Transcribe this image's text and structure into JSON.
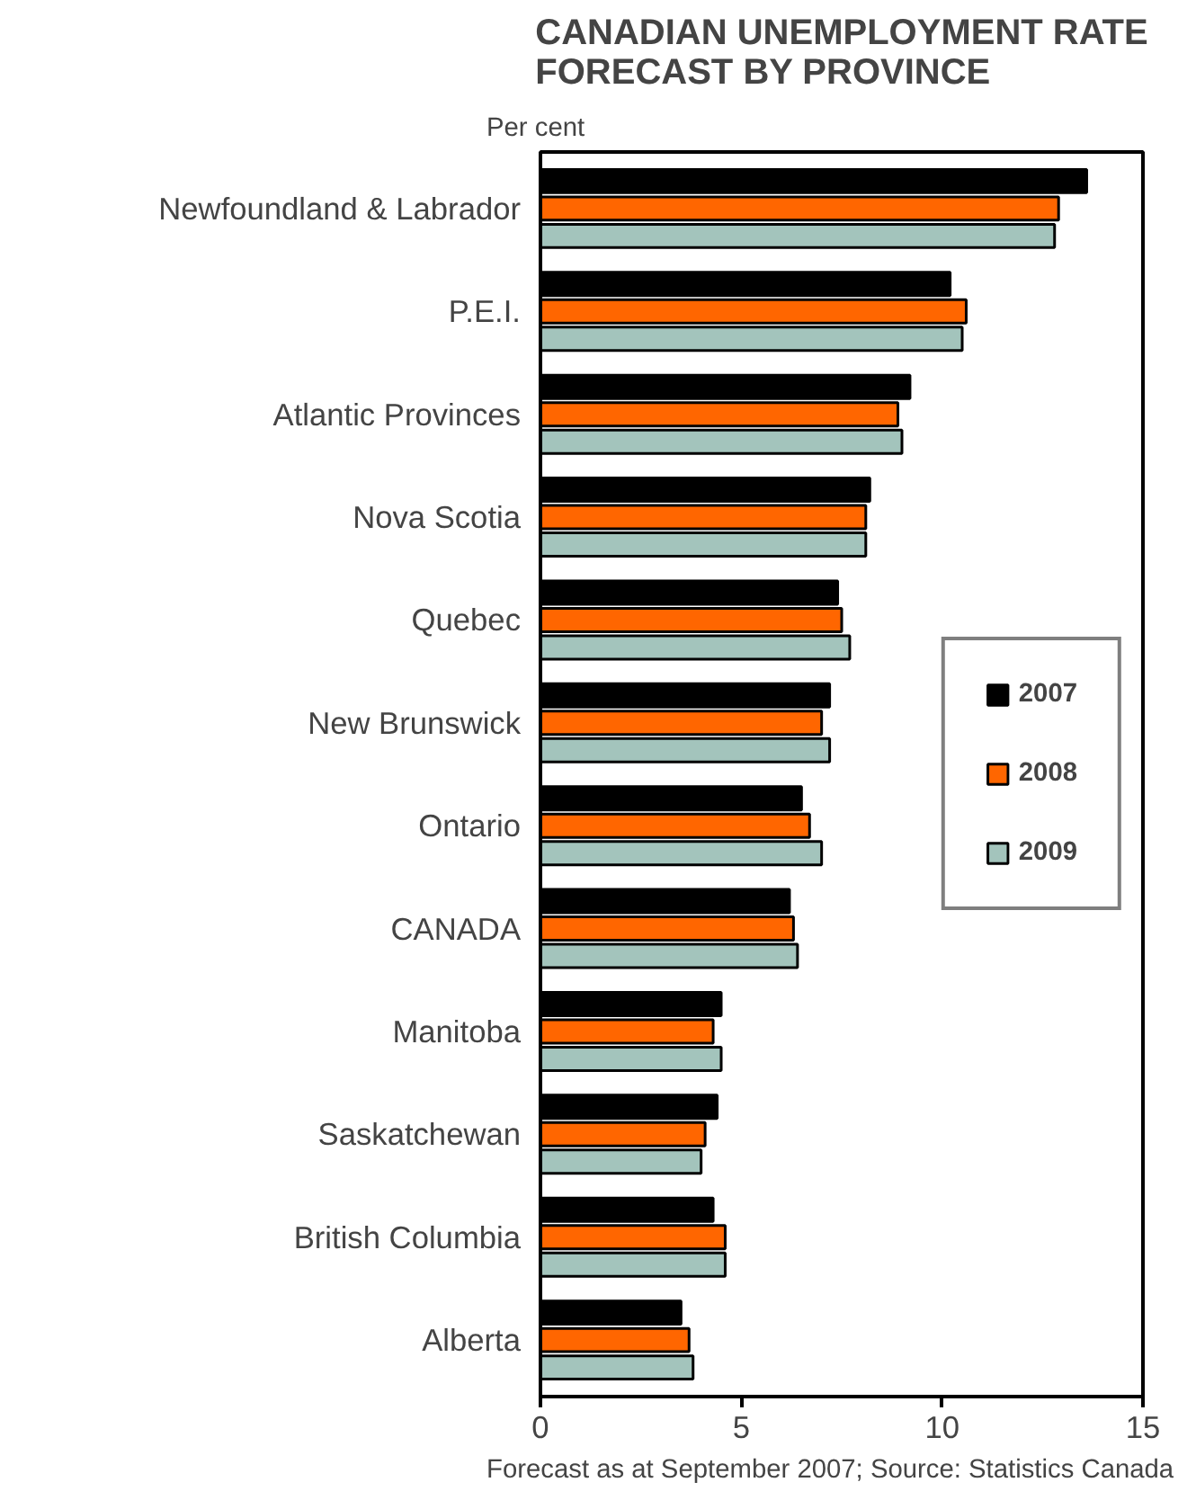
{
  "chart_data": {
    "type": "bar",
    "orientation": "horizontal",
    "title": "CANADIAN UNEMPLOYMENT RATE\nFORECAST BY PROVINCE",
    "xlabel": "Per cent",
    "categories": [
      "Newfoundland & Labrador",
      "P.E.I.",
      "Atlantic Provinces",
      "Nova Scotia",
      "Quebec",
      "New Brunswick",
      "Ontario",
      "CANADA",
      "Manitoba",
      "Saskatchewan",
      "British Columbia",
      "Alberta"
    ],
    "series": [
      {
        "name": "2007",
        "color": "#000000",
        "values": [
          13.6,
          10.2,
          9.2,
          8.2,
          7.4,
          7.2,
          6.5,
          6.2,
          4.5,
          4.4,
          4.3,
          3.5
        ]
      },
      {
        "name": "2008",
        "color": "#ff6600",
        "values": [
          12.9,
          10.6,
          8.9,
          8.1,
          7.5,
          7.0,
          6.7,
          6.3,
          4.3,
          4.1,
          4.6,
          3.7
        ]
      },
      {
        "name": "2009",
        "color": "#a3c4bc",
        "values": [
          12.8,
          10.5,
          9.0,
          8.1,
          7.7,
          7.2,
          7.0,
          6.4,
          4.5,
          4.0,
          4.6,
          3.8
        ]
      }
    ],
    "xlim": [
      0,
      15
    ],
    "xticks": [
      0,
      5,
      10,
      15
    ],
    "grid": false,
    "legend": "right",
    "annotations": [
      "Forecast as at September 2007; Source: Statistics Canada"
    ]
  }
}
